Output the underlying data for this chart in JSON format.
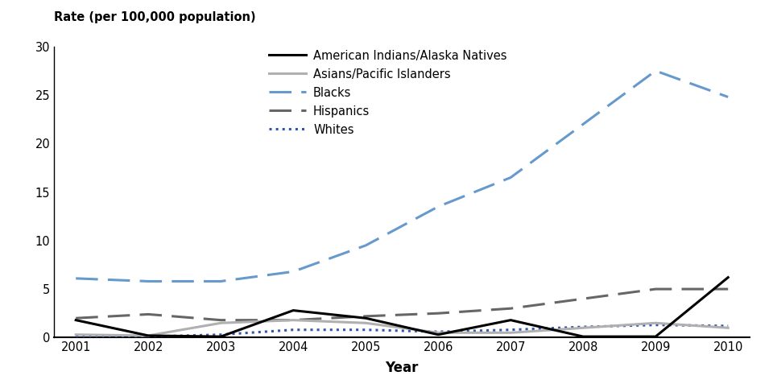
{
  "years": [
    2001,
    2002,
    2003,
    2004,
    2005,
    2006,
    2007,
    2008,
    2009,
    2010
  ],
  "american_indians": [
    1.8,
    0.2,
    0.1,
    2.8,
    2.0,
    0.3,
    1.8,
    0.1,
    0.1,
    6.2
  ],
  "asians": [
    0.3,
    0.2,
    1.5,
    1.8,
    1.5,
    0.5,
    0.5,
    1.0,
    1.5,
    1.0
  ],
  "blacks": [
    6.1,
    5.8,
    5.8,
    6.8,
    9.5,
    13.5,
    16.5,
    22.0,
    27.5,
    24.8
  ],
  "hispanics": [
    2.0,
    2.4,
    1.8,
    1.8,
    2.2,
    2.5,
    3.0,
    4.0,
    5.0,
    5.0
  ],
  "whites": [
    0.1,
    0.1,
    0.3,
    0.8,
    0.8,
    0.6,
    0.8,
    1.1,
    1.3,
    1.2
  ],
  "ylabel": "Rate (per 100,000 population)",
  "xlabel": "Year",
  "ylim": [
    0,
    30
  ],
  "yticks": [
    0,
    5,
    10,
    15,
    20,
    25,
    30
  ],
  "legend_labels": [
    "American Indians/Alaska Natives",
    "Asians/Pacific Islanders",
    "Blacks",
    "Hispanics",
    "Whites"
  ],
  "color_ai": "#000000",
  "color_asian": "#b0b0b0",
  "color_black": "#6699cc",
  "color_hispanic": "#666666",
  "color_white": "#3355aa"
}
